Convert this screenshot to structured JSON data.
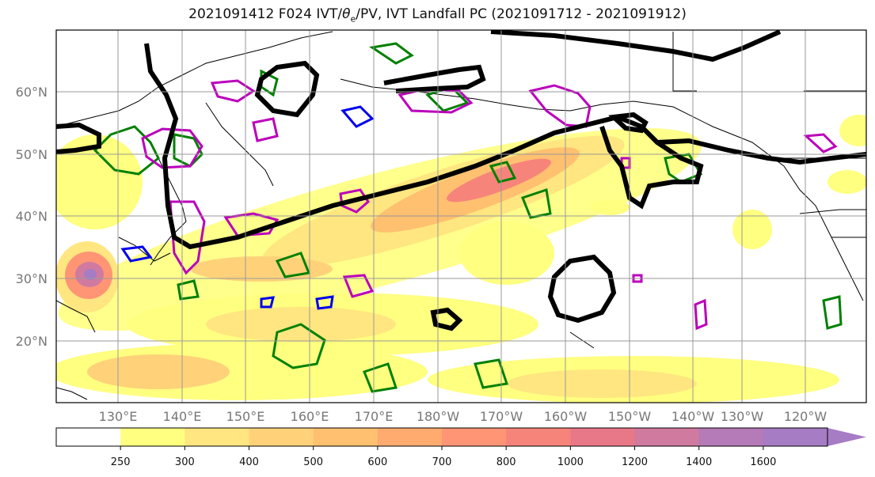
{
  "title": {
    "main": "2021091412 F024 IVT/",
    "theta": "θ",
    "sub": "e",
    "rest": "/PV, IVT Landfall PC (2021091712 - 2021091912)"
  },
  "axes": {
    "lat_labels": [
      "60°N",
      "50°N",
      "40°N",
      "30°N",
      "20°N"
    ],
    "lon_labels": [
      "130°E",
      "140°E",
      "150°E",
      "160°E",
      "170°E",
      "180°W",
      "170°W",
      "160°W",
      "150°W",
      "140°W",
      "130°W",
      "120°W"
    ]
  },
  "colorbar": {
    "levels": [
      "250",
      "300",
      "400",
      "500",
      "600",
      "700",
      "800",
      "1000",
      "1200",
      "1400",
      "1600"
    ],
    "colors": [
      "#ffff80",
      "#ffe680",
      "#ffd27a",
      "#ffc070",
      "#ffab70",
      "#ff9575",
      "#f7847a",
      "#e87888",
      "#d07aa0",
      "#b57ab8",
      "#a67cc5"
    ]
  },
  "colors": {
    "theta_e": "#000000",
    "pv_green": "#008000",
    "pv_magenta": "#bb00bb",
    "pv_blue": "#0000ee",
    "coast": "#000000",
    "grid": "#999999"
  }
}
